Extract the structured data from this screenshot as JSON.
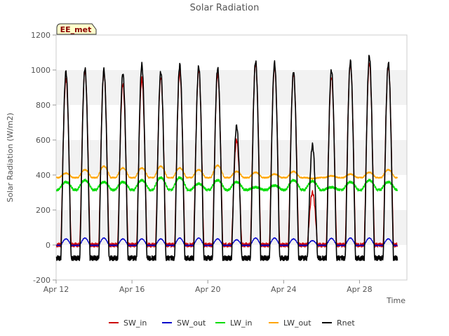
{
  "chart_data": {
    "type": "line",
    "title": "Solar Radiation",
    "xlabel": "Time",
    "ylabel": "Solar Radiation (W/m2)",
    "station_badge": "EE_met",
    "xlim": [
      "2020-04-12",
      "2020-04-30T12:00"
    ],
    "ylim": [
      -200,
      1200
    ],
    "y_ticks": [
      -200,
      0,
      200,
      400,
      600,
      800,
      1000,
      1200
    ],
    "x_ticks": [
      {
        "date": "2020-04-12",
        "label": "Apr 12"
      },
      {
        "date": "2020-04-16",
        "label": "Apr 16"
      },
      {
        "date": "2020-04-20",
        "label": "Apr 20"
      },
      {
        "date": "2020-04-24",
        "label": "Apr 24"
      },
      {
        "date": "2020-04-28",
        "label": "Apr 28"
      }
    ],
    "grid": "horizontal bands",
    "legend_position": "bottom",
    "days": [
      "2020-04-12",
      "2020-04-13",
      "2020-04-14",
      "2020-04-15",
      "2020-04-16",
      "2020-04-17",
      "2020-04-18",
      "2020-04-19",
      "2020-04-20",
      "2020-04-21",
      "2020-04-22",
      "2020-04-23",
      "2020-04-24",
      "2020-04-25",
      "2020-04-26",
      "2020-04-27",
      "2020-04-28",
      "2020-04-29"
    ],
    "series": [
      {
        "name": "SW_in",
        "color": "#cc0000",
        "daily_peak": [
          950,
          1000,
          990,
          920,
          950,
          960,
          990,
          1000,
          980,
          600,
          1040,
          1020,
          980,
          300,
          960,
          1040,
          1040,
          1030
        ],
        "night": 0
      },
      {
        "name": "SW_out",
        "color": "#0000cc",
        "daily_peak": [
          35,
          40,
          40,
          35,
          35,
          35,
          40,
          40,
          35,
          30,
          40,
          40,
          35,
          25,
          38,
          40,
          40,
          35
        ],
        "night": -2
      },
      {
        "name": "LW_in",
        "color": "#00dd00",
        "daily_peak": [
          360,
          370,
          360,
          360,
          370,
          385,
          385,
          350,
          370,
          360,
          330,
          340,
          370,
          365,
          330,
          360,
          370,
          360
        ],
        "night": 315
      },
      {
        "name": "LW_out",
        "color": "#ffa500",
        "daily_peak": [
          410,
          430,
          450,
          440,
          440,
          450,
          440,
          430,
          455,
          420,
          415,
          405,
          420,
          380,
          395,
          405,
          415,
          430
        ],
        "night": 385
      },
      {
        "name": "Rnet",
        "color": "#000000",
        "daily_peak": [
          990,
          1010,
          1000,
          980,
          1030,
          990,
          1030,
          1020,
          1010,
          680,
          1050,
          1040,
          990,
          570,
          1000,
          1050,
          1080,
          1040
        ],
        "night": -75
      }
    ]
  }
}
